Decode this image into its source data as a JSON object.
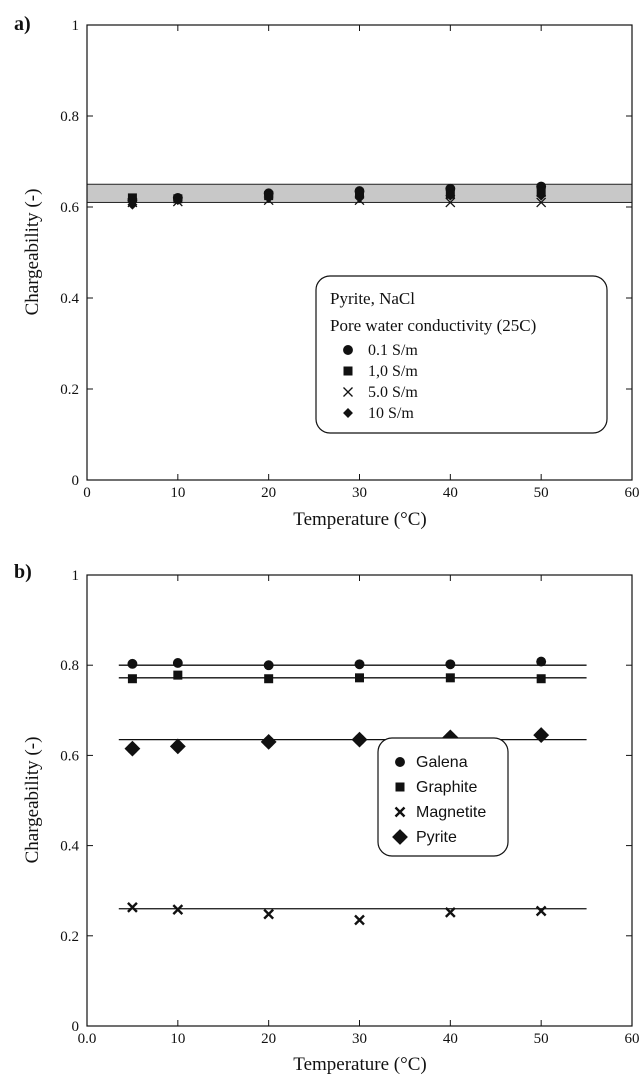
{
  "chart_data": [
    {
      "panel_label": "a)",
      "type": "scatter",
      "xlabel": "Temperature (°C)",
      "ylabel": "Chargeability (-)",
      "xlim": [
        0,
        60
      ],
      "ylim": [
        0,
        1
      ],
      "x_ticks": [
        "0",
        "10",
        "20",
        "30",
        "40",
        "50",
        "60"
      ],
      "y_ticks": [
        "0",
        "0.2",
        "0.4",
        "0.6",
        "0.8",
        "1"
      ],
      "shaded_band": {
        "y_min": 0.61,
        "y_max": 0.65,
        "color": "#c8c8c8"
      },
      "legend": {
        "position": "center-right",
        "title_lines": [
          "Pyrite, NaCl",
          "Pore water conductivity (25C)"
        ]
      },
      "series": [
        {
          "name": "0.1 S/m",
          "marker": "circle",
          "x": [
            5,
            10,
            20,
            30,
            40,
            50
          ],
          "y": [
            0.615,
            0.62,
            0.63,
            0.635,
            0.64,
            0.645
          ]
        },
        {
          "name": "1,0 S/m",
          "marker": "square",
          "x": [
            5,
            10,
            20,
            30,
            40,
            50
          ],
          "y": [
            0.62,
            0.618,
            0.625,
            0.63,
            0.628,
            0.632
          ]
        },
        {
          "name": "5.0 S/m",
          "marker": "x",
          "x": [
            5,
            10,
            20,
            30,
            40,
            50
          ],
          "y": [
            0.61,
            0.612,
            0.615,
            0.615,
            0.61,
            0.61
          ]
        },
        {
          "name": "10 S/m",
          "marker": "diamond",
          "x": [
            5,
            10,
            20,
            30,
            40,
            50
          ],
          "y": [
            0.605,
            0.615,
            0.62,
            0.62,
            0.625,
            0.625
          ]
        }
      ]
    },
    {
      "panel_label": "b)",
      "type": "scatter",
      "xlabel": "Temperature (°C)",
      "ylabel": "Chargeability (-)",
      "xlim": [
        0,
        60
      ],
      "ylim": [
        0,
        1
      ],
      "x_ticks": [
        "0.0",
        "10",
        "20",
        "30",
        "40",
        "50",
        "60"
      ],
      "y_ticks": [
        "0",
        "0.2",
        "0.4",
        "0.6",
        "0.8",
        "1"
      ],
      "legend": {
        "position": "center-right"
      },
      "series": [
        {
          "name": "Galena",
          "marker": "circle",
          "x": [
            5,
            10,
            20,
            30,
            40,
            50
          ],
          "y": [
            0.803,
            0.805,
            0.8,
            0.802,
            0.802,
            0.808
          ],
          "fit": {
            "x": [
              3.5,
              55
            ],
            "y": 0.8
          }
        },
        {
          "name": "Graphite",
          "marker": "square",
          "x": [
            5,
            10,
            20,
            30,
            40,
            50
          ],
          "y": [
            0.77,
            0.778,
            0.77,
            0.772,
            0.772,
            0.77
          ],
          "fit": {
            "x": [
              3.5,
              55
            ],
            "y": 0.772
          }
        },
        {
          "name": "Magnetite",
          "marker": "x",
          "x": [
            5,
            10,
            20,
            30,
            40,
            50
          ],
          "y": [
            0.263,
            0.258,
            0.248,
            0.235,
            0.252,
            0.255
          ],
          "fit": {
            "x": [
              3.5,
              55
            ],
            "y": 0.26
          }
        },
        {
          "name": "Pyrite",
          "marker": "circle-diamond",
          "x": [
            5,
            10,
            20,
            30,
            40,
            50
          ],
          "y": [
            0.615,
            0.62,
            0.63,
            0.635,
            0.64,
            0.645
          ],
          "fit": {
            "x": [
              3.5,
              55
            ],
            "y": 0.635
          }
        }
      ]
    }
  ]
}
